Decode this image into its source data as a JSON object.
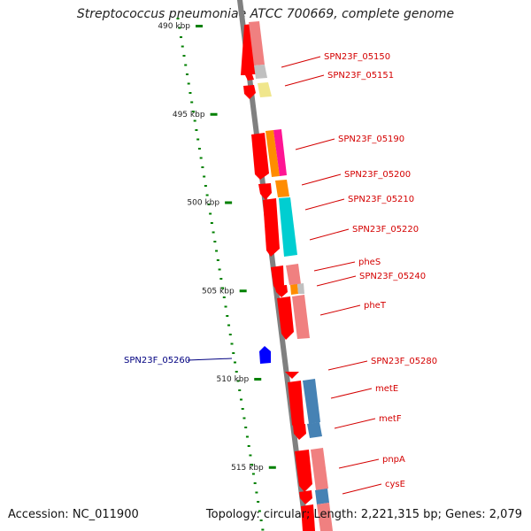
{
  "title": "Streptococcus pneumoniae ATCC 700669, complete genome",
  "footer": {
    "accession": "Accession: NC_011900",
    "stats": "Topology: circular; Length: 2,221,315 bp; Genes: 2,079"
  },
  "colors": {
    "gene_red": "#ff0000",
    "gene_pink": "#f08080",
    "gene_blue": "#0000ff",
    "label_red": "#d40000",
    "label_blue": "#000080",
    "tick_green": "#008000",
    "backbone": "#808080"
  },
  "ticks": [
    {
      "label": "490 kbp",
      "pos_kbp": 490
    },
    {
      "label": "495 kbp",
      "pos_kbp": 495
    },
    {
      "label": "500 kbp",
      "pos_kbp": 500
    },
    {
      "label": "505 kbp",
      "pos_kbp": 505
    },
    {
      "label": "510 kbp",
      "pos_kbp": 510
    },
    {
      "label": "515 kbp",
      "pos_kbp": 515
    }
  ],
  "gene_labels": [
    {
      "label": "SPN23F_05150",
      "strand": "forward"
    },
    {
      "label": "SPN23F_05151",
      "strand": "forward"
    },
    {
      "label": "SPN23F_05190",
      "strand": "forward"
    },
    {
      "label": "SPN23F_05200",
      "strand": "forward"
    },
    {
      "label": "SPN23F_05210",
      "strand": "forward"
    },
    {
      "label": "SPN23F_05220",
      "strand": "forward"
    },
    {
      "label": "pheS",
      "strand": "forward"
    },
    {
      "label": "SPN23F_05240",
      "strand": "forward"
    },
    {
      "label": "pheT",
      "strand": "forward"
    },
    {
      "label": "SPN23F_05260",
      "strand": "reverse"
    },
    {
      "label": "SPN23F_05280",
      "strand": "forward"
    },
    {
      "label": "metE",
      "strand": "forward"
    },
    {
      "label": "metF",
      "strand": "forward"
    },
    {
      "label": "pnpA",
      "strand": "forward"
    },
    {
      "label": "cysE",
      "strand": "forward"
    }
  ]
}
